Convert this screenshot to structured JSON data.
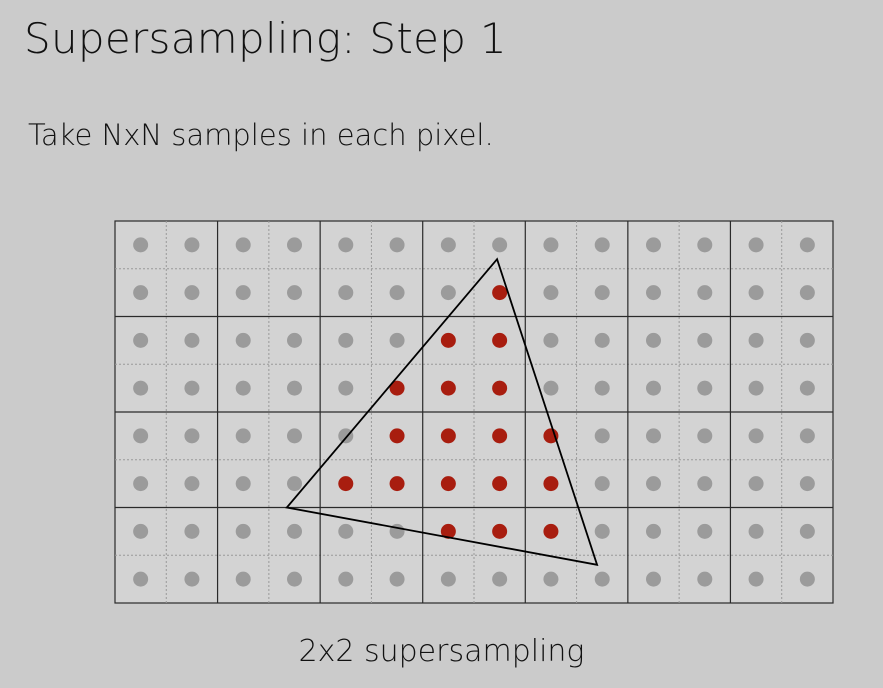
{
  "slide": {
    "title": "Supersampling: Step 1",
    "body": "Take NxN samples in each pixel.",
    "caption": "2x2 supersampling"
  },
  "grid": {
    "pixel_columns": 7,
    "pixel_rows": 4,
    "samples_per_pixel_side": 2
  },
  "triangle": {
    "vertices_in_sample_units": [
      [
        7.45,
        0.8
      ],
      [
        3.35,
        6.0
      ],
      [
        9.4,
        7.2
      ]
    ]
  },
  "colors": {
    "background": "#cbcbcb",
    "pixel_fill": "#d3d3d3",
    "pixel_border": "#2a2a2a",
    "subpixel_border": "#9a9a9a",
    "sample_outside": "#9b9b9b",
    "sample_inside": "#a81d0f",
    "triangle_stroke": "#000000"
  }
}
